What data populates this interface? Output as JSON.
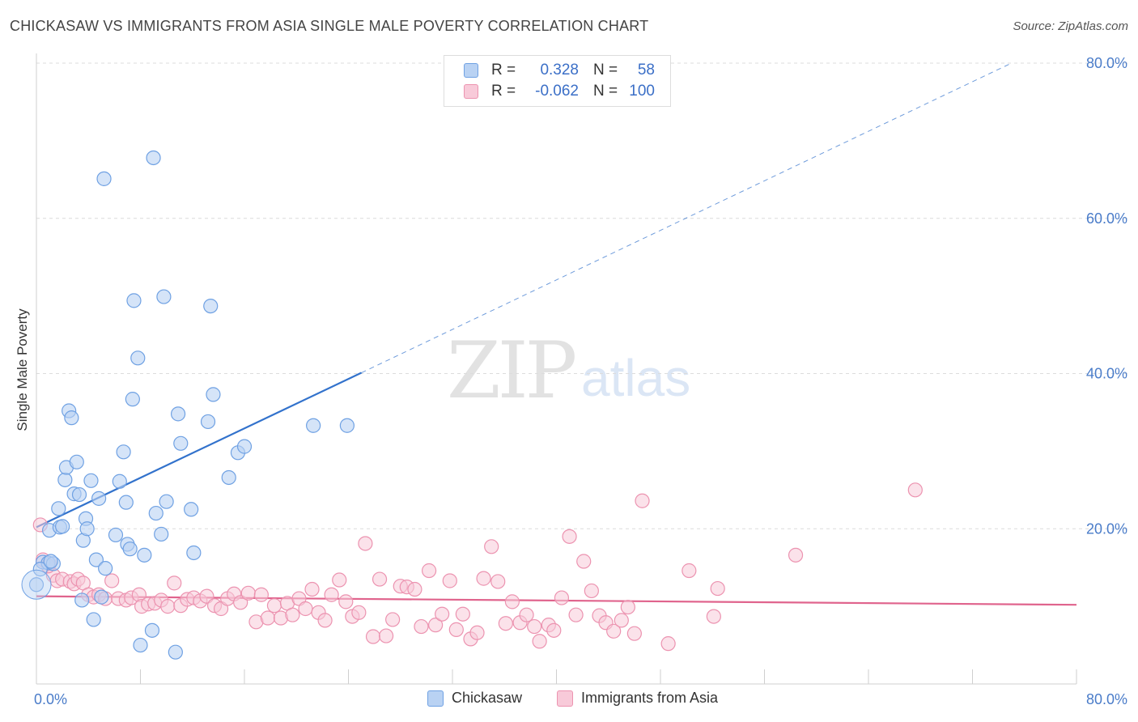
{
  "title": "CHICKASAW VS IMMIGRANTS FROM ASIA SINGLE MALE POVERTY CORRELATION CHART",
  "source": "Source: ZipAtlas.com",
  "watermark": {
    "main": "ZIP",
    "sub": "atlas"
  },
  "colors": {
    "blue": "#6fa1e3",
    "blue_fill": "#b9d2f3",
    "blue_line": "#3272cc",
    "pink": "#ec93b0",
    "pink_fill": "#f8cad9",
    "pink_line": "#e0648d",
    "tick": "#4a7cc9"
  },
  "legend": {
    "rows": [
      {
        "label": "R =",
        "r": "0.328",
        "n_label": "N =",
        "n": "58"
      },
      {
        "label": "R =",
        "r": "-0.062",
        "n_label": "N =",
        "n": "100"
      }
    ]
  },
  "bottom_legend": {
    "series1": "Chickasaw",
    "series2": "Immigrants from Asia"
  },
  "chart_data": {
    "type": "scatter",
    "title": "CHICKASAW VS IMMIGRANTS FROM ASIA SINGLE MALE POVERTY CORRELATION CHART",
    "xlabel": "",
    "ylabel": "Single Male Poverty",
    "xlim": [
      0,
      80
    ],
    "ylim": [
      0,
      80
    ],
    "y_ticks": [
      "20.0%",
      "40.0%",
      "60.0%",
      "80.0%"
    ],
    "y_tick_values": [
      20,
      40,
      60,
      80
    ],
    "x_tick_labels": [
      "0.0%",
      "80.0%"
    ],
    "x_tick_values": [
      0,
      8,
      16,
      24,
      32,
      40,
      48,
      56,
      64,
      72,
      80
    ],
    "grid": true,
    "series": [
      {
        "name": "Chickasaw",
        "r": 0.328,
        "n": 58,
        "trend": {
          "x0": 0,
          "y0": 20.2,
          "x1": 25,
          "y1": 40.1,
          "dash_to_x": 75,
          "dash_to_y": 80.0
        },
        "points": [
          [
            0.0,
            12.8
          ],
          [
            0.5,
            15.7
          ],
          [
            0.9,
            15.6
          ],
          [
            1.3,
            15.5
          ],
          [
            1.0,
            19.8
          ],
          [
            1.7,
            22.6
          ],
          [
            1.8,
            20.2
          ],
          [
            2.0,
            20.3
          ],
          [
            2.2,
            26.3
          ],
          [
            2.3,
            27.9
          ],
          [
            2.5,
            35.2
          ],
          [
            2.7,
            34.3
          ],
          [
            2.9,
            24.5
          ],
          [
            3.1,
            28.6
          ],
          [
            3.3,
            24.4
          ],
          [
            3.5,
            10.8
          ],
          [
            3.6,
            18.5
          ],
          [
            3.8,
            21.3
          ],
          [
            3.9,
            20.0
          ],
          [
            4.2,
            26.2
          ],
          [
            4.4,
            8.3
          ],
          [
            4.6,
            16.0
          ],
          [
            4.8,
            23.9
          ],
          [
            5.0,
            11.2
          ],
          [
            5.3,
            14.9
          ],
          [
            5.2,
            65.1
          ],
          [
            6.1,
            19.2
          ],
          [
            6.4,
            26.1
          ],
          [
            6.7,
            29.9
          ],
          [
            6.9,
            23.4
          ],
          [
            7.0,
            18.0
          ],
          [
            7.2,
            17.4
          ],
          [
            7.5,
            49.4
          ],
          [
            7.4,
            36.7
          ],
          [
            7.8,
            42.0
          ],
          [
            8.3,
            16.6
          ],
          [
            8.9,
            6.9
          ],
          [
            9.0,
            67.8
          ],
          [
            9.2,
            22.0
          ],
          [
            9.6,
            19.3
          ],
          [
            9.8,
            49.9
          ],
          [
            10.0,
            23.5
          ],
          [
            10.7,
            4.1
          ],
          [
            10.9,
            34.8
          ],
          [
            11.1,
            31.0
          ],
          [
            11.9,
            22.5
          ],
          [
            12.1,
            16.9
          ],
          [
            13.2,
            33.8
          ],
          [
            13.4,
            48.7
          ],
          [
            13.6,
            37.3
          ],
          [
            14.8,
            26.6
          ],
          [
            15.5,
            29.8
          ],
          [
            16.0,
            30.6
          ],
          [
            21.3,
            33.3
          ],
          [
            23.9,
            33.3
          ],
          [
            8.0,
            5.0
          ],
          [
            0.3,
            14.8
          ],
          [
            1.1,
            15.8
          ]
        ]
      },
      {
        "name": "Immigrants from Asia",
        "r": -0.062,
        "n": 100,
        "trend": {
          "x0": 0,
          "y0": 11.3,
          "x1": 80,
          "y1": 10.2
        },
        "points": [
          [
            0.3,
            20.5
          ],
          [
            0.5,
            16.0
          ],
          [
            1.0,
            15.5
          ],
          [
            1.3,
            14.0
          ],
          [
            1.6,
            13.3
          ],
          [
            2.0,
            13.5
          ],
          [
            2.6,
            13.2
          ],
          [
            2.9,
            12.9
          ],
          [
            3.2,
            13.5
          ],
          [
            3.6,
            13.0
          ],
          [
            4.0,
            11.5
          ],
          [
            4.4,
            11.2
          ],
          [
            4.8,
            11.5
          ],
          [
            5.3,
            11.0
          ],
          [
            5.8,
            13.3
          ],
          [
            6.3,
            11.0
          ],
          [
            6.9,
            10.8
          ],
          [
            7.3,
            11.1
          ],
          [
            7.9,
            11.5
          ],
          [
            8.1,
            10.0
          ],
          [
            8.6,
            10.3
          ],
          [
            9.1,
            10.4
          ],
          [
            9.6,
            10.8
          ],
          [
            10.1,
            10.0
          ],
          [
            10.6,
            13.0
          ],
          [
            11.1,
            10.1
          ],
          [
            11.6,
            10.9
          ],
          [
            12.1,
            11.1
          ],
          [
            12.6,
            10.7
          ],
          [
            13.1,
            11.3
          ],
          [
            13.7,
            10.1
          ],
          [
            14.2,
            9.7
          ],
          [
            14.7,
            11.0
          ],
          [
            15.2,
            11.6
          ],
          [
            15.7,
            10.5
          ],
          [
            16.3,
            11.7
          ],
          [
            16.9,
            8.0
          ],
          [
            17.3,
            11.5
          ],
          [
            17.8,
            8.5
          ],
          [
            18.3,
            10.1
          ],
          [
            18.8,
            8.5
          ],
          [
            19.3,
            10.4
          ],
          [
            19.7,
            8.9
          ],
          [
            20.2,
            11.0
          ],
          [
            20.7,
            9.7
          ],
          [
            21.2,
            12.2
          ],
          [
            21.7,
            9.2
          ],
          [
            22.2,
            8.2
          ],
          [
            22.7,
            11.5
          ],
          [
            23.3,
            13.4
          ],
          [
            23.8,
            10.6
          ],
          [
            24.3,
            8.7
          ],
          [
            24.8,
            9.2
          ],
          [
            25.3,
            18.1
          ],
          [
            25.9,
            6.1
          ],
          [
            26.4,
            13.5
          ],
          [
            26.9,
            6.2
          ],
          [
            27.4,
            8.3
          ],
          [
            28.0,
            12.6
          ],
          [
            28.5,
            12.5
          ],
          [
            29.1,
            12.2
          ],
          [
            29.6,
            7.4
          ],
          [
            30.2,
            14.6
          ],
          [
            30.7,
            7.6
          ],
          [
            31.2,
            9.0
          ],
          [
            31.8,
            13.3
          ],
          [
            32.3,
            7.0
          ],
          [
            32.8,
            9.0
          ],
          [
            33.4,
            5.8
          ],
          [
            33.9,
            6.6
          ],
          [
            34.4,
            13.6
          ],
          [
            35.0,
            17.7
          ],
          [
            35.5,
            13.2
          ],
          [
            36.1,
            7.8
          ],
          [
            36.6,
            10.6
          ],
          [
            37.2,
            7.9
          ],
          [
            37.7,
            8.9
          ],
          [
            38.3,
            7.4
          ],
          [
            38.7,
            5.5
          ],
          [
            39.4,
            7.6
          ],
          [
            39.8,
            6.9
          ],
          [
            40.4,
            11.1
          ],
          [
            41.0,
            19.0
          ],
          [
            41.5,
            8.9
          ],
          [
            42.1,
            15.8
          ],
          [
            42.7,
            12.0
          ],
          [
            43.3,
            8.8
          ],
          [
            43.8,
            7.9
          ],
          [
            44.4,
            6.8
          ],
          [
            45.0,
            8.2
          ],
          [
            45.5,
            9.9
          ],
          [
            46.0,
            6.5
          ],
          [
            46.6,
            23.6
          ],
          [
            48.6,
            5.2
          ],
          [
            50.2,
            14.6
          ],
          [
            52.1,
            8.7
          ],
          [
            52.4,
            12.3
          ],
          [
            58.4,
            16.6
          ],
          [
            67.6,
            25.0
          ],
          [
            0.9,
            15.2
          ]
        ]
      }
    ]
  }
}
